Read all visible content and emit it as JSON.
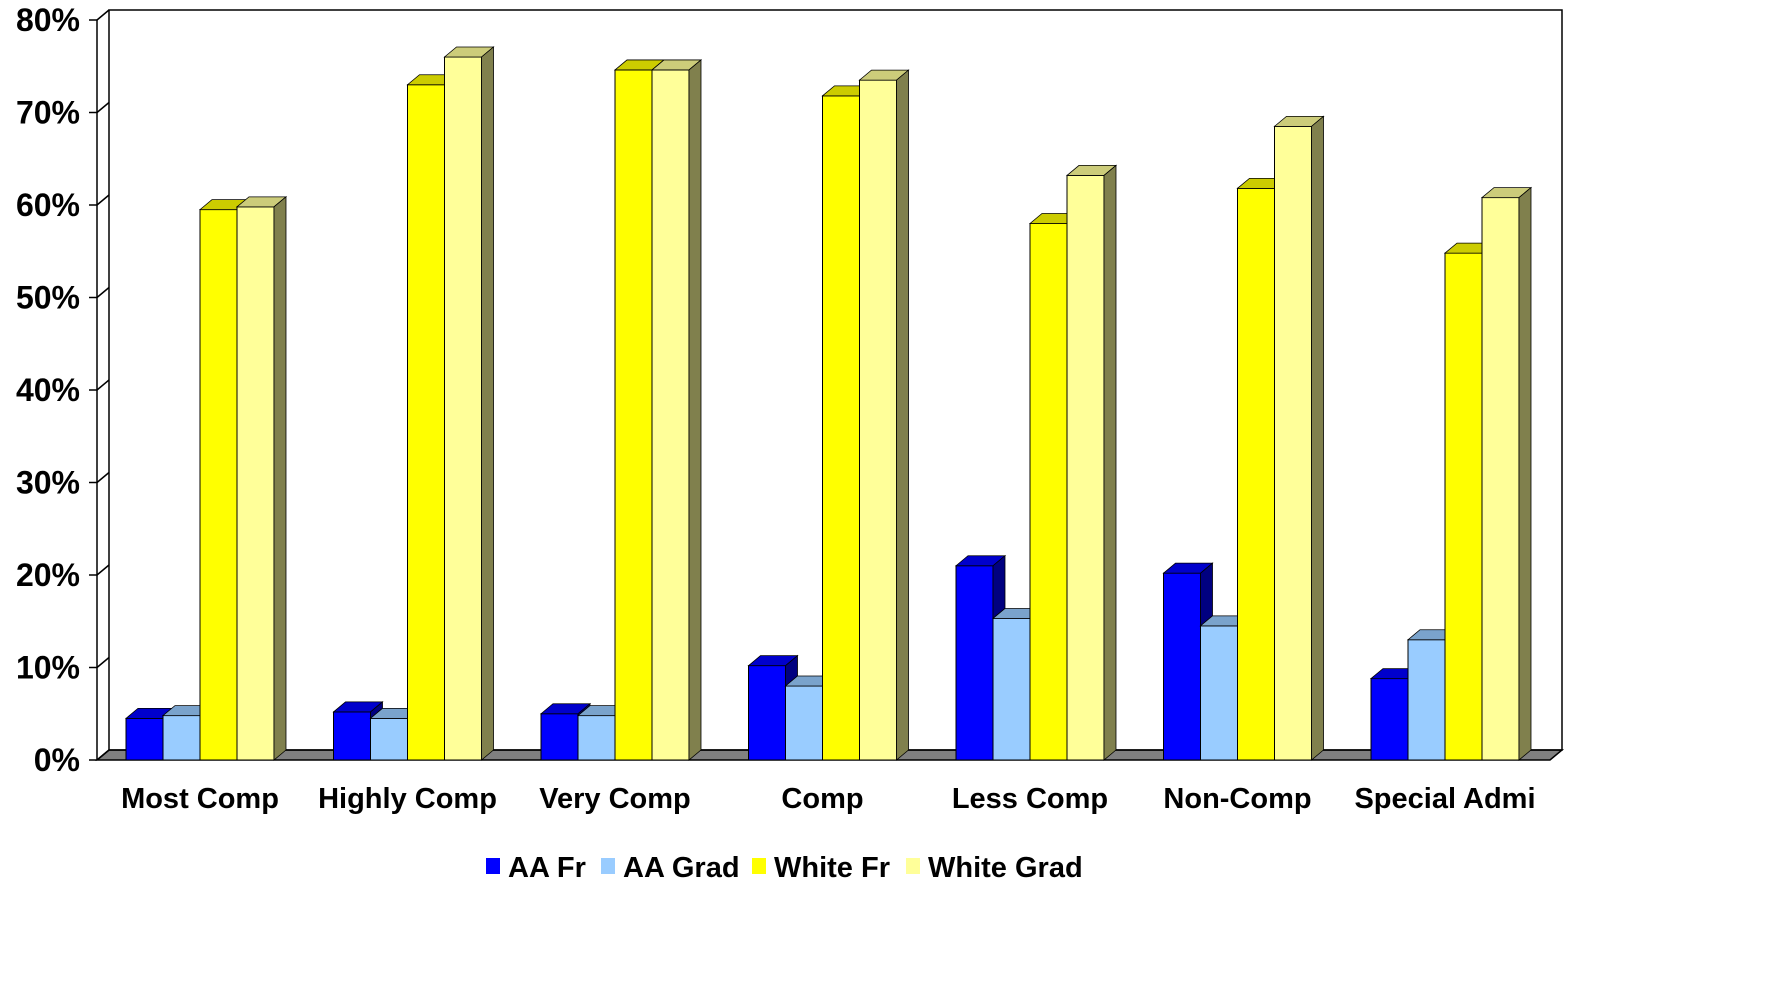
{
  "chart_data": {
    "type": "bar",
    "categories": [
      "Most Comp",
      "Highly Comp",
      "Very Comp",
      "Comp",
      "Less Comp",
      "Non-Comp",
      "Special Admi"
    ],
    "series": [
      {
        "name": "AA Fr",
        "color": "#0000ff",
        "values": [
          4.5,
          5.2,
          5.0,
          10.2,
          21.0,
          20.2,
          8.8
        ]
      },
      {
        "name": "AA Grad",
        "color": "#99ccff",
        "values": [
          4.8,
          4.5,
          4.8,
          8.0,
          15.3,
          14.5,
          13.0
        ]
      },
      {
        "name": "White Fr",
        "color": "#ffff00",
        "values": [
          59.5,
          73.0,
          74.6,
          71.8,
          58.0,
          61.8,
          54.8
        ]
      },
      {
        "name": "White Grad",
        "color": "#ffff99",
        "values": [
          59.8,
          76.0,
          74.6,
          73.5,
          63.2,
          68.5,
          60.8
        ]
      }
    ],
    "ylim": [
      0,
      80
    ],
    "yticks": [
      "0%",
      "10%",
      "20%",
      "30%",
      "40%",
      "50%",
      "60%",
      "70%",
      "80%"
    ],
    "grid": false,
    "legend_position": "bottom"
  }
}
